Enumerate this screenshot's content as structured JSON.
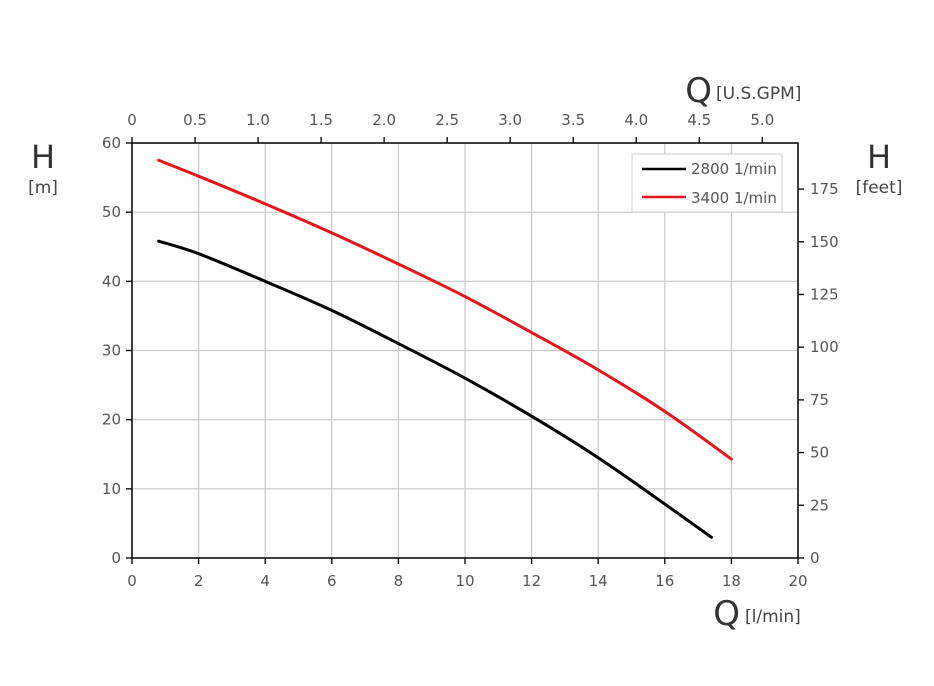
{
  "chart_data": {
    "type": "line",
    "x_bottom": {
      "symbol": "Q",
      "unit": "[l/min]",
      "range": [
        0,
        20
      ],
      "ticks": [
        "0",
        "2",
        "4",
        "6",
        "8",
        "10",
        "12",
        "14",
        "16",
        "18",
        "20"
      ]
    },
    "x_top": {
      "symbol": "Q",
      "unit": "[U.S.GPM]",
      "range": [
        0,
        5.283
      ],
      "ticks": [
        "0",
        "0.5",
        "1.0",
        "1.5",
        "2.0",
        "2.5",
        "3.0",
        "3.5",
        "4.0",
        "4.5",
        "5.0"
      ]
    },
    "y_left": {
      "symbol": "H",
      "unit": "[m]",
      "range": [
        0,
        60
      ],
      "ticks": [
        "0",
        "10",
        "20",
        "30",
        "40",
        "50",
        "60"
      ]
    },
    "y_right": {
      "symbol": "H",
      "unit": "[feet]",
      "range": [
        0,
        196.85
      ],
      "ticks": [
        "0",
        "25",
        "50",
        "75",
        "100",
        "125",
        "150",
        "175"
      ]
    },
    "grid": true,
    "legend_position": "top-right",
    "series": [
      {
        "name": "2800 1/min",
        "color": "#000000",
        "x": [
          0.8,
          2,
          4,
          6,
          8,
          10,
          12,
          14,
          16,
          17.4
        ],
        "y": [
          45.8,
          44,
          40,
          35.8,
          31,
          26,
          20.5,
          14.5,
          7.8,
          3
        ]
      },
      {
        "name": "3400 1/min",
        "color": "#e8141c",
        "x": [
          0.8,
          2,
          4,
          6,
          8,
          10,
          12,
          14,
          16,
          18
        ],
        "y": [
          57.5,
          55.2,
          51.2,
          47,
          42.5,
          37.8,
          32.6,
          27.2,
          21.2,
          14.3
        ]
      }
    ]
  }
}
